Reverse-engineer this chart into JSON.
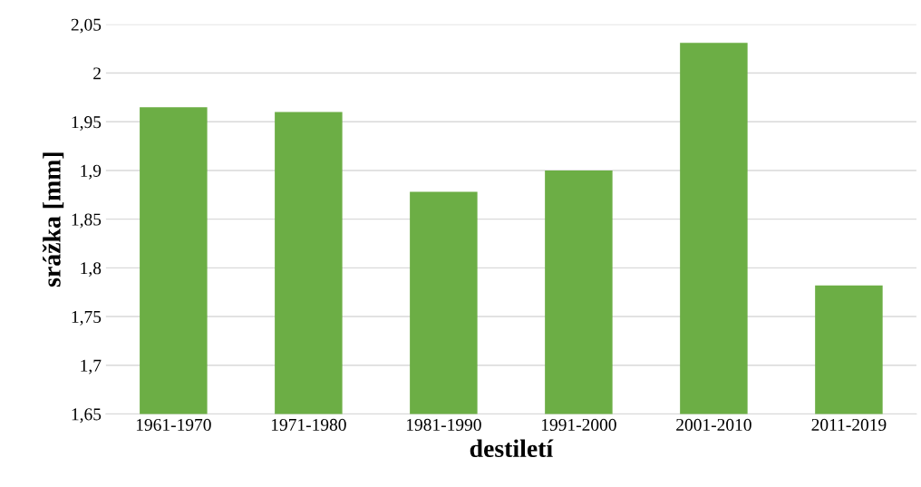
{
  "chart_data": {
    "type": "bar",
    "xlabel": "destiletí",
    "ylabel": "srážka [mm]",
    "categories": [
      "1961-1970",
      "1971-1980",
      "1981-1990",
      "1991-2000",
      "2001-2010",
      "2011-2019"
    ],
    "values": [
      1.965,
      1.96,
      1.878,
      1.9,
      2.031,
      1.782
    ],
    "color": "#6cae45",
    "ylim": [
      1.65,
      2.05
    ],
    "yticks": [
      {
        "value": 1.65,
        "label": "1,65"
      },
      {
        "value": 1.7,
        "label": "1,7"
      },
      {
        "value": 1.75,
        "label": "1,75"
      },
      {
        "value": 1.8,
        "label": "1,8"
      },
      {
        "value": 1.85,
        "label": "1,85"
      },
      {
        "value": 1.9,
        "label": "1,9"
      },
      {
        "value": 1.95,
        "label": "1,95"
      },
      {
        "value": 2,
        "label": "2"
      },
      {
        "value": 2.05,
        "label": "2,05"
      }
    ],
    "grid": "y",
    "legend": false
  }
}
